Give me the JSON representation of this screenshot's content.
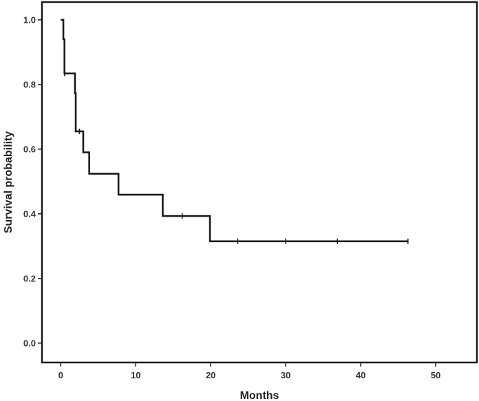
{
  "chart_data": {
    "type": "line",
    "title": "",
    "xlabel": "Months",
    "ylabel": "Survival probability",
    "xlim": [
      -2.5,
      55.5
    ],
    "ylim": [
      -0.06,
      1.055
    ],
    "x_ticks": [
      0,
      10,
      20,
      30,
      40,
      50
    ],
    "y_ticks": [
      0.0,
      0.2,
      0.4,
      0.6,
      0.8,
      1.0
    ],
    "x_tick_labels": [
      "0",
      "10",
      "20",
      "30",
      "40",
      "50"
    ],
    "y_tick_labels": [
      "0.0",
      "0.2",
      "0.4",
      "0.6",
      "0.8",
      "1.0"
    ],
    "grid": false,
    "legend": "none",
    "series": [
      {
        "name": "",
        "color": "#1a1a1a",
        "step": "post",
        "x": [
          0,
          0.35,
          0.5,
          1.9,
          2.0,
          3.0,
          3.8,
          7.7,
          13.6,
          19.9,
          46.3
        ],
        "y": [
          1.0,
          0.94,
          0.834,
          0.773,
          0.655,
          0.59,
          0.524,
          0.459,
          0.393,
          0.315,
          0.315
        ],
        "censored": [
          {
            "x": 0.5,
            "y": 0.834
          },
          {
            "x": 2.5,
            "y": 0.655
          },
          {
            "x": 16.2,
            "y": 0.393
          },
          {
            "x": 23.6,
            "y": 0.315
          },
          {
            "x": 30.0,
            "y": 0.315
          },
          {
            "x": 36.9,
            "y": 0.315
          },
          {
            "x": 46.3,
            "y": 0.315
          }
        ]
      }
    ]
  }
}
